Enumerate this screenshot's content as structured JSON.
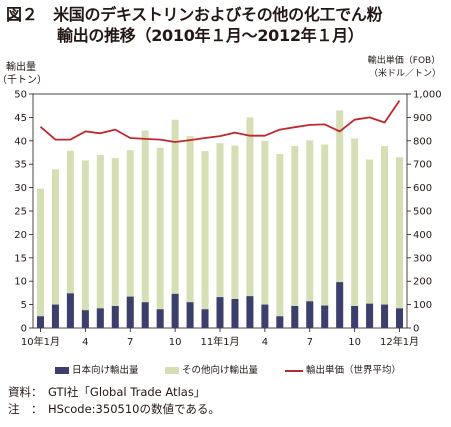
{
  "title": {
    "line1": "図２　米国のデキストリンおよびその他の化工でん粉",
    "line2": "輸出の推移（2010年１月～2012年１月）"
  },
  "colors": {
    "japan": "#3a3f6e",
    "other": "#d6dfb4",
    "price": "#c0282d",
    "axis": "#231815"
  },
  "chart_data": {
    "type": "bar",
    "categories": [
      "2010-01",
      "2010-02",
      "2010-03",
      "2010-04",
      "2010-05",
      "2010-06",
      "2010-07",
      "2010-08",
      "2010-09",
      "2010-10",
      "2010-11",
      "2010-12",
      "2011-01",
      "2011-02",
      "2011-03",
      "2011-04",
      "2011-05",
      "2011-06",
      "2011-07",
      "2011-08",
      "2011-09",
      "2011-10",
      "2011-11",
      "2011-12",
      "2012-01"
    ],
    "x_tick_labels": [
      "10年1月",
      "4",
      "7",
      "10",
      "11年1月",
      "4",
      "7",
      "10",
      "12年1月"
    ],
    "x_tick_positions": [
      0,
      3,
      6,
      9,
      12,
      15,
      18,
      21,
      24
    ],
    "y_left": {
      "label_line1": "輸出量",
      "label_line2": "（千トン）",
      "lim": [
        0,
        50
      ],
      "ticks": [
        0,
        5,
        10,
        15,
        20,
        25,
        30,
        35,
        40,
        45,
        50
      ]
    },
    "y_right": {
      "label_line1": "輸出単価（FOB）",
      "label_line2": "（米ドル／トン）",
      "lim": [
        0,
        1000
      ],
      "ticks": [
        "0",
        "100",
        "200",
        "300",
        "400",
        "500",
        "600",
        "700",
        "800",
        "900",
        "1,000"
      ]
    },
    "series": [
      {
        "name": "日本向け輸出量",
        "type": "bar",
        "axis": "left",
        "values": [
          2.5,
          5.0,
          7.4,
          3.8,
          4.2,
          4.7,
          6.7,
          5.5,
          4.0,
          7.3,
          5.5,
          4.0,
          6.6,
          6.2,
          6.8,
          5.0,
          2.5,
          4.7,
          5.7,
          4.8,
          9.8,
          4.7,
          5.2,
          5.0,
          4.2
        ]
      },
      {
        "name": "その他向け輸出量",
        "type": "bar",
        "axis": "left",
        "values": [
          29.8,
          33.9,
          37.9,
          35.8,
          37.0,
          36.3,
          38.0,
          42.2,
          38.5,
          44.5,
          41.0,
          37.8,
          39.5,
          39.0,
          45.0,
          40.0,
          37.2,
          38.9,
          40.1,
          39.2,
          46.5,
          40.5,
          36.0,
          38.9,
          36.5
        ]
      },
      {
        "name": "輸出単価（世界平均）",
        "type": "line",
        "axis": "right",
        "values": [
          860,
          805,
          805,
          840,
          832,
          848,
          812,
          808,
          805,
          795,
          803,
          812,
          820,
          835,
          822,
          822,
          848,
          858,
          868,
          870,
          840,
          890,
          900,
          878,
          972
        ]
      }
    ],
    "legend_position": "bottom",
    "grid": false
  },
  "notes": {
    "source_label": "資料：",
    "source_text": "GTI社「Global Trade Atlas」",
    "note_label": "注　：",
    "note_text": "HScode:350510の数値である。"
  }
}
